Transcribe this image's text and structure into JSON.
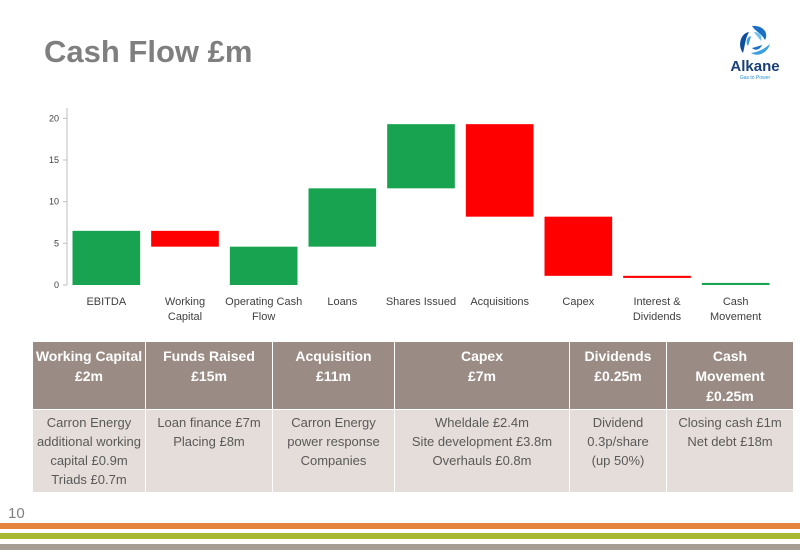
{
  "title": "Cash Flow £m",
  "logo": {
    "name": "Alkane",
    "tagline": "Gas to Power"
  },
  "page_number": "10",
  "colors": {
    "increase": "#17a34f",
    "decrease": "#ff0000",
    "header_bg": "#9a8c84",
    "body_bg": "#e5ddd9"
  },
  "chart_data": {
    "type": "bar",
    "subtype": "waterfall",
    "categories": [
      "EBITDA",
      "Working Capital",
      "Operating Cash Flow",
      "Loans",
      "Shares Issued",
      "Acquisitions",
      "Capex",
      "Interest & Dividends",
      "Cash Movement"
    ],
    "category_labels": [
      [
        "EBITDA"
      ],
      [
        "Working",
        "Capital"
      ],
      [
        "Operating Cash",
        "Flow"
      ],
      [
        "Loans"
      ],
      [
        "Shares Issued"
      ],
      [
        "Acquisitions"
      ],
      [
        "Capex"
      ],
      [
        "Interest &",
        "Dividends"
      ],
      [
        "Cash",
        "Movement"
      ]
    ],
    "bars": [
      {
        "start": 0,
        "end": 6.5,
        "kind": "increase"
      },
      {
        "start": 6.5,
        "end": 4.6,
        "kind": "decrease"
      },
      {
        "start": 0,
        "end": 4.6,
        "kind": "increase"
      },
      {
        "start": 4.6,
        "end": 11.6,
        "kind": "increase"
      },
      {
        "start": 11.6,
        "end": 19.3,
        "kind": "increase"
      },
      {
        "start": 19.3,
        "end": 8.2,
        "kind": "decrease"
      },
      {
        "start": 8.2,
        "end": 1.1,
        "kind": "decrease"
      },
      {
        "start": 1.1,
        "end": 0.85,
        "kind": "decrease"
      },
      {
        "start": 0,
        "end": 0.25,
        "kind": "increase"
      }
    ],
    "yticks": [
      0,
      5,
      10,
      15,
      20
    ],
    "ylim": [
      0,
      21
    ],
    "title": "",
    "xlabel": "",
    "ylabel": "",
    "grid": false,
    "legend": "none"
  },
  "table": {
    "headers": [
      [
        "Working Capital",
        "£2m"
      ],
      [
        "Funds Raised",
        "£15m"
      ],
      [
        "Acquisition",
        "£11m"
      ],
      [
        "Capex",
        "£7m"
      ],
      [
        "Dividends",
        "£0.25m"
      ],
      [
        "Cash",
        "Movement",
        "£0.25m"
      ]
    ],
    "cells": [
      [
        "Carron Energy",
        "additional working",
        "capital £0.9m",
        "Triads £0.7m"
      ],
      [
        "Loan finance £7m",
        "Placing £8m"
      ],
      [
        "Carron Energy",
        "power response",
        "Companies"
      ],
      [
        "Wheldale £2.4m",
        "Site development £3.8m",
        "Overhauls £0.8m"
      ],
      [
        "Dividend",
        "0.3p/share",
        "(up 50%)"
      ],
      [
        "Closing cash £1m",
        "Net debt £18m"
      ]
    ]
  }
}
